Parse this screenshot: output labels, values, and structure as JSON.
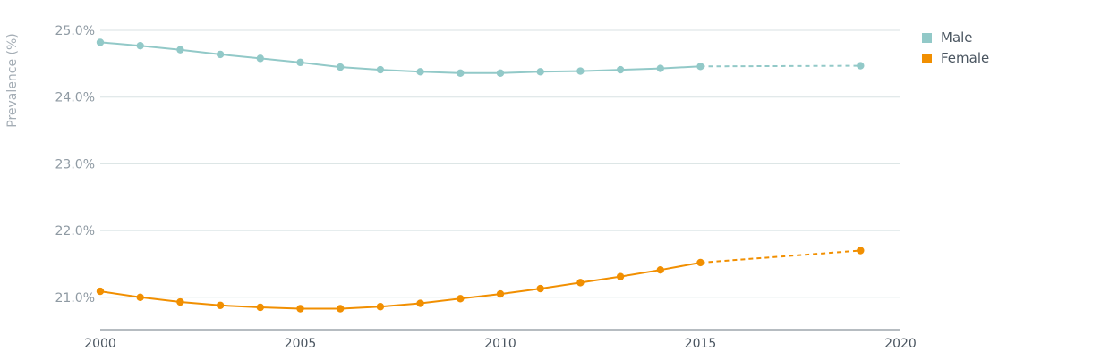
{
  "chart_data": {
    "type": "line",
    "ylabel": "Prevalence (%)",
    "xlim": [
      2000,
      2020
    ],
    "ylim": [
      20.5,
      25.0
    ],
    "x_ticks": [
      2000,
      2005,
      2010,
      2015,
      2020
    ],
    "x_tick_labels": [
      "2000",
      "2005",
      "2010",
      "2015",
      "2020"
    ],
    "y_ticks": [
      21.0,
      22.0,
      23.0,
      24.0,
      25.0
    ],
    "y_tick_labels": [
      "21.0%",
      "22.0%",
      "23.0%",
      "24.0%",
      "25.0%"
    ],
    "grid": true,
    "legend_position": "top-right",
    "series": [
      {
        "name": "Male",
        "color": "#92c9c8",
        "x": [
          2000,
          2001,
          2002,
          2003,
          2004,
          2005,
          2006,
          2007,
          2008,
          2009,
          2010,
          2011,
          2012,
          2013,
          2014,
          2015
        ],
        "values": [
          24.82,
          24.77,
          24.71,
          24.64,
          24.58,
          24.52,
          24.45,
          24.41,
          24.38,
          24.36,
          24.36,
          24.38,
          24.39,
          24.41,
          24.43,
          24.46
        ],
        "projection": {
          "x": [
            2015,
            2019
          ],
          "values": [
            24.46,
            24.47
          ]
        }
      },
      {
        "name": "Female",
        "color": "#f18f01",
        "x": [
          2000,
          2001,
          2002,
          2003,
          2004,
          2005,
          2006,
          2007,
          2008,
          2009,
          2010,
          2011,
          2012,
          2013,
          2014,
          2015
        ],
        "values": [
          21.09,
          21.0,
          20.93,
          20.88,
          20.85,
          20.83,
          20.83,
          20.86,
          20.91,
          20.98,
          21.05,
          21.13,
          21.22,
          21.31,
          21.41,
          21.52
        ],
        "projection": {
          "x": [
            2015,
            2019
          ],
          "values": [
            21.52,
            21.7
          ]
        }
      }
    ]
  }
}
